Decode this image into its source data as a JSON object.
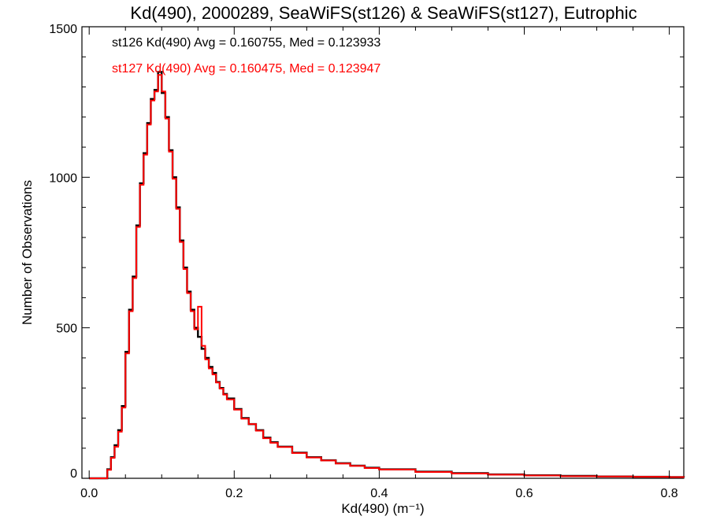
{
  "chart_data": {
    "type": "line",
    "step": true,
    "title": "Kd(490), 2000289, SeaWiFS(st126) & SeaWiFS(st127), Eutrophic",
    "xlabel": "Kd(490) (m⁻¹)",
    "ylabel": "Number of Observations",
    "xlim": [
      -0.01,
      0.82
    ],
    "ylim": [
      0,
      1500
    ],
    "xticks": [
      0.0,
      0.2,
      0.4,
      0.6,
      0.8
    ],
    "xtick_labels": [
      "0.0",
      "0.2",
      "0.4",
      "0.6",
      "0.8"
    ],
    "yticks": [
      0,
      500,
      1000,
      1500
    ],
    "ytick_labels": [
      "0",
      "500",
      "1000",
      "1500"
    ],
    "grid": false,
    "annotations": [
      {
        "text": "st126 Kd(490) Avg = 0.160755, Med = 0.123933",
        "color": "#000000"
      },
      {
        "text": "st127 Kd(490) Avg = 0.160475, Med = 0.123947",
        "color": "#ff0000"
      }
    ],
    "series": [
      {
        "color": "#000000",
        "x": [
          0.0,
          0.02,
          0.025,
          0.03,
          0.035,
          0.04,
          0.045,
          0.05,
          0.055,
          0.06,
          0.065,
          0.07,
          0.075,
          0.08,
          0.085,
          0.09,
          0.095,
          0.1,
          0.105,
          0.11,
          0.115,
          0.12,
          0.125,
          0.13,
          0.135,
          0.14,
          0.145,
          0.15,
          0.155,
          0.16,
          0.165,
          0.17,
          0.175,
          0.18,
          0.185,
          0.19,
          0.2,
          0.21,
          0.22,
          0.23,
          0.24,
          0.25,
          0.26,
          0.28,
          0.3,
          0.32,
          0.34,
          0.36,
          0.38,
          0.4,
          0.45,
          0.5,
          0.55,
          0.6,
          0.65,
          0.7,
          0.75,
          0.8,
          0.82
        ],
        "values": [
          0,
          0,
          30,
          70,
          110,
          160,
          240,
          420,
          560,
          670,
          840,
          980,
          1080,
          1180,
          1260,
          1290,
          1350,
          1280,
          1200,
          1090,
          1000,
          900,
          790,
          700,
          620,
          560,
          500,
          470,
          430,
          400,
          370,
          350,
          320,
          300,
          280,
          265,
          230,
          200,
          180,
          160,
          135,
          120,
          105,
          85,
          70,
          60,
          50,
          42,
          35,
          30,
          22,
          17,
          13,
          10,
          8,
          6,
          5,
          4,
          3
        ]
      },
      {
        "color": "#ff0000",
        "x": [
          0.0,
          0.02,
          0.025,
          0.03,
          0.035,
          0.04,
          0.045,
          0.05,
          0.055,
          0.06,
          0.065,
          0.07,
          0.075,
          0.08,
          0.085,
          0.09,
          0.095,
          0.1,
          0.105,
          0.11,
          0.115,
          0.12,
          0.125,
          0.13,
          0.135,
          0.14,
          0.145,
          0.15,
          0.155,
          0.16,
          0.165,
          0.17,
          0.175,
          0.18,
          0.185,
          0.19,
          0.2,
          0.21,
          0.22,
          0.23,
          0.24,
          0.25,
          0.26,
          0.28,
          0.3,
          0.32,
          0.34,
          0.36,
          0.38,
          0.4,
          0.45,
          0.5,
          0.55,
          0.6,
          0.65,
          0.7,
          0.75,
          0.8,
          0.82
        ],
        "values": [
          0,
          0,
          28,
          68,
          105,
          155,
          235,
          415,
          555,
          665,
          835,
          975,
          1075,
          1175,
          1255,
          1285,
          1340,
          1285,
          1195,
          1085,
          995,
          895,
          785,
          695,
          615,
          555,
          495,
          570,
          440,
          395,
          365,
          345,
          318,
          298,
          278,
          262,
          228,
          198,
          180,
          158,
          133,
          118,
          104,
          84,
          69,
          59,
          49,
          41,
          34,
          29,
          21,
          16,
          12,
          9,
          7,
          6,
          5,
          4,
          3
        ]
      }
    ]
  }
}
